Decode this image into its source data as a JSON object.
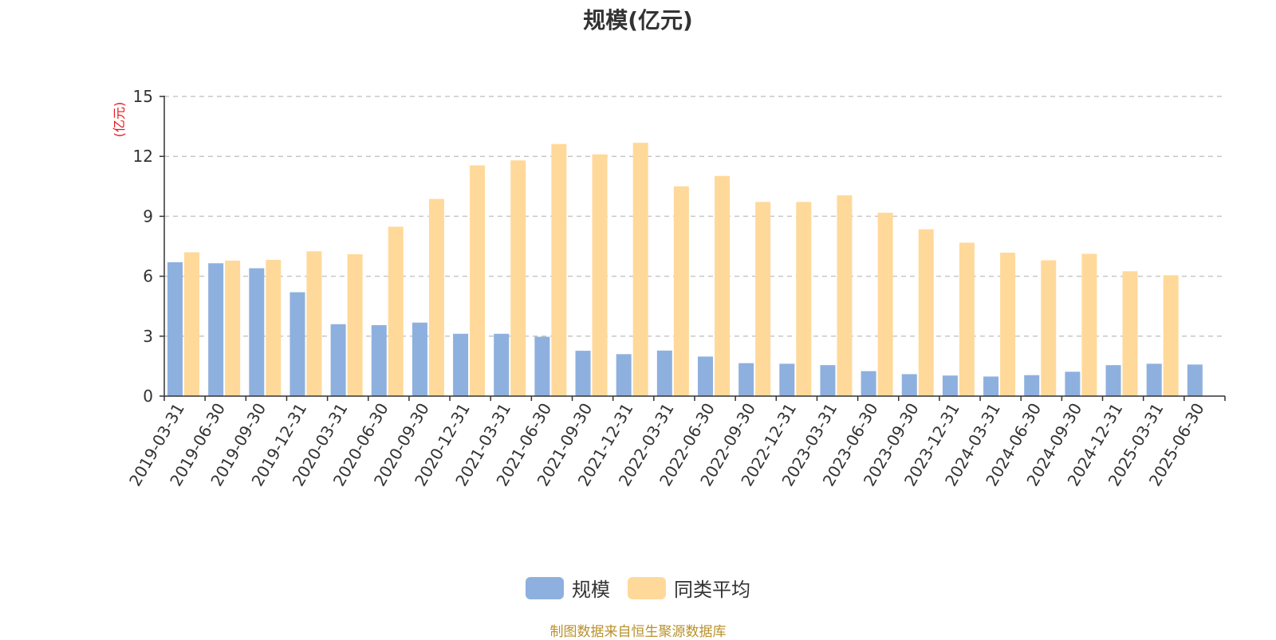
{
  "colors": {
    "series_scale": "#8eb0de",
    "series_avg": "#ffd99a",
    "unit": "#e4161d",
    "source": "#b8922a",
    "grid": "#c7c7c7",
    "axis": "#333333"
  },
  "legend": {
    "items": [
      "规模",
      "同类平均"
    ]
  },
  "source_text": "制图数据来自恒生聚源数据库",
  "chart_data": {
    "type": "bar",
    "title": "规模(亿元)",
    "ylabel": "(亿元)",
    "xlabel": "",
    "ylim": [
      0,
      15
    ],
    "yticks": [
      0,
      3,
      6,
      9,
      12,
      15
    ],
    "ytick_labels": [
      "0",
      "3",
      "6",
      "9",
      "12",
      "15"
    ],
    "grid": true,
    "legend_position": "bottom-center",
    "categories": [
      "2019-03-31",
      "2019-06-30",
      "2019-09-30",
      "2019-12-31",
      "2020-03-31",
      "2020-06-30",
      "2020-09-30",
      "2020-12-31",
      "2021-03-31",
      "2021-06-30",
      "2021-09-30",
      "2021-12-31",
      "2022-03-31",
      "2022-06-30",
      "2022-09-30",
      "2022-12-31",
      "2023-03-31",
      "2023-06-30",
      "2023-09-30",
      "2023-12-31",
      "2024-03-31",
      "2024-06-30",
      "2024-09-30",
      "2024-12-31",
      "2025-03-31",
      "2025-06-30"
    ],
    "series": [
      {
        "name": "规模",
        "values": [
          6.7,
          6.65,
          6.4,
          5.2,
          3.6,
          3.55,
          3.68,
          3.12,
          3.12,
          2.97,
          2.27,
          2.1,
          2.28,
          1.98,
          1.65,
          1.62,
          1.55,
          1.25,
          1.1,
          1.03,
          0.98,
          1.05,
          1.22,
          1.55,
          1.62,
          1.58
        ]
      },
      {
        "name": "同类平均",
        "values": [
          7.2,
          6.78,
          6.82,
          7.25,
          7.1,
          8.48,
          9.87,
          11.55,
          11.8,
          12.62,
          12.1,
          12.68,
          10.5,
          11.02,
          9.72,
          9.72,
          10.05,
          9.18,
          8.35,
          7.68,
          7.18,
          6.8,
          7.12,
          6.25,
          6.05,
          null
        ]
      }
    ]
  }
}
